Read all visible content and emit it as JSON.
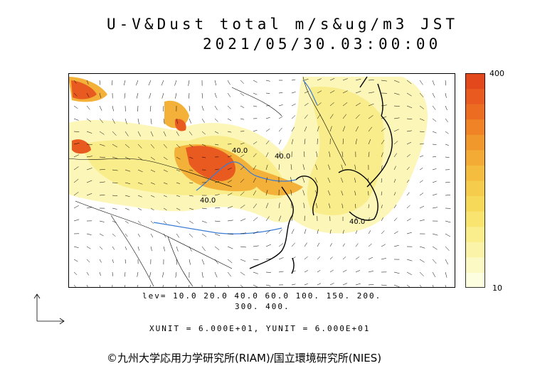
{
  "title": {
    "line1": "U-V&Dust total m/s&ug/m3 JST",
    "line2": "2021/05/30.03:00:00"
  },
  "colorbar": {
    "max_label": "400",
    "min_label": "10",
    "colors": [
      "#fdfde0",
      "#fcf9c4",
      "#fbf4a8",
      "#faee8c",
      "#f8e46e",
      "#f7d95a",
      "#f6cc4c",
      "#f5bd40",
      "#f3ab35",
      "#f1982c",
      "#ef8326",
      "#ec6d22",
      "#e85a1f",
      "#e3481c"
    ]
  },
  "contour_labels": [
    "40.0",
    "40.0",
    "40.0",
    "40.0"
  ],
  "legend": {
    "levels_line1": "lev= 10.0 20.0 40.0 60.0 100. 150. 200.",
    "levels_line2": "300. 400.",
    "units": "XUNIT = 6.000E+01, YUNIT = 6.000E+01"
  },
  "copyright": "©九州大学応用力学研究所(RIAM)/国立環境研究所(NIES)"
}
